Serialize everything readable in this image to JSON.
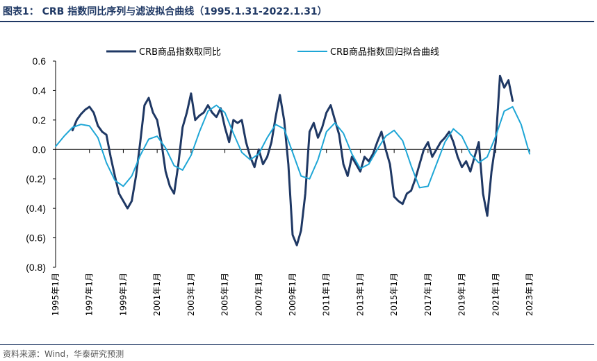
{
  "header": {
    "title": "图表1： CRB 指数同比序列与滤波拟合曲线（1995.1.31-2022.1.31）"
  },
  "footer": {
    "source": "资料来源：Wind，华泰研究预测"
  },
  "colors": {
    "series_dark": "#1f3864",
    "series_light": "#1ea6d6",
    "axis": "#000000",
    "title": "#1f3864"
  },
  "chart_data": {
    "type": "line",
    "title": "CRB 指数同比序列与滤波拟合曲线（1995.1.31-2022.1.31）",
    "xlabel": "",
    "ylabel": "",
    "legend_position": "top",
    "grid": false,
    "xlim": [
      1995.0,
      2023.0
    ],
    "ylim": [
      -0.8,
      0.6
    ],
    "y_ticks": [
      0.6,
      0.4,
      0.2,
      0.0,
      -0.2,
      -0.4,
      -0.6,
      -0.8
    ],
    "y_tick_labels": [
      "0.6",
      "0.4",
      "0.2",
      "0.0",
      "(0.2)",
      "(0.4)",
      "(0.6)",
      "(0.8)"
    ],
    "x_ticks": [
      1995,
      1997,
      1999,
      2001,
      2003,
      2005,
      2007,
      2009,
      2011,
      2013,
      2015,
      2017,
      2019,
      2021,
      2023
    ],
    "x_tick_labels": [
      "1995年1月",
      "1997年1月",
      "1999年1月",
      "2001年1月",
      "2003年1月",
      "2005年1月",
      "2007年1月",
      "2009年1月",
      "2011年1月",
      "2013年1月",
      "2015年1月",
      "2017年1月",
      "2019年1月",
      "2021年1月",
      "2023年1月"
    ],
    "series": [
      {
        "name": "CRB商品指数取同比",
        "color": "#1f3864",
        "x": [
          1996.0,
          1996.25,
          1996.5,
          1996.75,
          1997.0,
          1997.25,
          1997.5,
          1997.75,
          1998.0,
          1998.25,
          1998.5,
          1998.75,
          1999.0,
          1999.25,
          1999.5,
          1999.75,
          2000.0,
          2000.25,
          2000.5,
          2000.75,
          2001.0,
          2001.25,
          2001.5,
          2001.75,
          2002.0,
          2002.25,
          2002.5,
          2002.75,
          2003.0,
          2003.25,
          2003.5,
          2003.75,
          2004.0,
          2004.25,
          2004.5,
          2004.75,
          2005.0,
          2005.25,
          2005.5,
          2005.75,
          2006.0,
          2006.25,
          2006.5,
          2006.75,
          2007.0,
          2007.25,
          2007.5,
          2007.75,
          2008.0,
          2008.25,
          2008.5,
          2008.75,
          2009.0,
          2009.25,
          2009.5,
          2009.75,
          2010.0,
          2010.25,
          2010.5,
          2010.75,
          2011.0,
          2011.25,
          2011.5,
          2011.75,
          2012.0,
          2012.25,
          2012.5,
          2012.75,
          2013.0,
          2013.25,
          2013.5,
          2013.75,
          2014.0,
          2014.25,
          2014.5,
          2014.75,
          2015.0,
          2015.25,
          2015.5,
          2015.75,
          2016.0,
          2016.25,
          2016.5,
          2016.75,
          2017.0,
          2017.25,
          2017.5,
          2017.75,
          2018.0,
          2018.25,
          2018.5,
          2018.75,
          2019.0,
          2019.25,
          2019.5,
          2019.75,
          2020.0,
          2020.25,
          2020.5,
          2020.75,
          2021.0,
          2021.25,
          2021.5,
          2021.75,
          2022.0
        ],
        "values": [
          0.13,
          0.2,
          0.24,
          0.27,
          0.29,
          0.25,
          0.16,
          0.12,
          0.1,
          -0.05,
          -0.18,
          -0.3,
          -0.35,
          -0.4,
          -0.35,
          -0.18,
          0.05,
          0.3,
          0.35,
          0.25,
          0.2,
          0.05,
          -0.15,
          -0.25,
          -0.3,
          -0.1,
          0.15,
          0.25,
          0.38,
          0.2,
          0.23,
          0.25,
          0.3,
          0.25,
          0.22,
          0.28,
          0.15,
          0.05,
          0.2,
          0.18,
          0.2,
          0.05,
          -0.05,
          -0.12,
          0.0,
          -0.1,
          -0.05,
          0.05,
          0.22,
          0.37,
          0.2,
          -0.1,
          -0.58,
          -0.65,
          -0.55,
          -0.3,
          0.12,
          0.18,
          0.08,
          0.15,
          0.25,
          0.3,
          0.2,
          0.1,
          -0.1,
          -0.18,
          -0.05,
          -0.1,
          -0.15,
          -0.05,
          -0.08,
          -0.03,
          0.05,
          0.12,
          0.0,
          -0.1,
          -0.32,
          -0.35,
          -0.37,
          -0.3,
          -0.28,
          -0.2,
          -0.1,
          0.0,
          0.05,
          -0.05,
          0.0,
          0.05,
          0.08,
          0.12,
          0.05,
          -0.05,
          -0.12,
          -0.08,
          -0.15,
          -0.05,
          0.05,
          -0.3,
          -0.45,
          -0.15,
          0.05,
          0.5,
          0.42,
          0.47,
          0.33
        ]
      },
      {
        "name": "CRB商品指数回归拟合曲线",
        "color": "#1ea6d6",
        "x": [
          1995.0,
          1995.5,
          1996.0,
          1996.5,
          1997.0,
          1997.5,
          1998.0,
          1998.5,
          1999.0,
          1999.5,
          2000.0,
          2000.5,
          2001.0,
          2001.5,
          2002.0,
          2002.5,
          2003.0,
          2003.5,
          2004.0,
          2004.5,
          2005.0,
          2005.5,
          2006.0,
          2006.5,
          2007.0,
          2007.5,
          2008.0,
          2008.5,
          2009.0,
          2009.5,
          2010.0,
          2010.5,
          2011.0,
          2011.5,
          2012.0,
          2012.5,
          2013.0,
          2013.5,
          2014.0,
          2014.5,
          2015.0,
          2015.5,
          2016.0,
          2016.5,
          2017.0,
          2017.5,
          2018.0,
          2018.5,
          2019.0,
          2019.5,
          2020.0,
          2020.5,
          2021.0,
          2021.5,
          2022.0,
          2022.5,
          2023.0
        ],
        "values": [
          0.02,
          0.09,
          0.15,
          0.17,
          0.16,
          0.08,
          -0.09,
          -0.21,
          -0.25,
          -0.18,
          -0.04,
          0.07,
          0.09,
          0.01,
          -0.11,
          -0.14,
          -0.04,
          0.12,
          0.26,
          0.3,
          0.25,
          0.11,
          -0.02,
          -0.07,
          -0.03,
          0.08,
          0.17,
          0.14,
          -0.02,
          -0.18,
          -0.2,
          -0.07,
          0.12,
          0.18,
          0.11,
          -0.03,
          -0.13,
          -0.1,
          0.0,
          0.09,
          0.13,
          0.06,
          -0.11,
          -0.26,
          -0.25,
          -0.1,
          0.05,
          0.14,
          0.09,
          -0.03,
          -0.09,
          -0.05,
          0.09,
          0.26,
          0.29,
          0.17,
          -0.03
        ]
      }
    ]
  }
}
